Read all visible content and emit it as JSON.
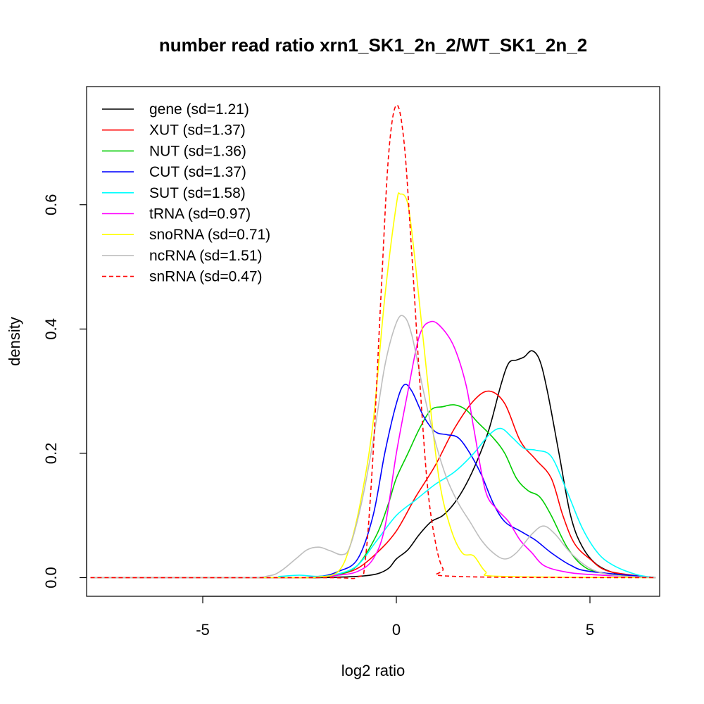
{
  "chart_data": {
    "type": "line",
    "title": "number read ratio xrn1_SK1_2n_2/WT_SK1_2n_2",
    "xlabel": "log2 ratio",
    "ylabel": "density",
    "xlim": [
      -8.0,
      6.8
    ],
    "ylim": [
      -0.03,
      0.79
    ],
    "x_ticks": [
      -5,
      0,
      5
    ],
    "x_tick_labels": [
      "-5",
      "0",
      "5"
    ],
    "y_ticks": [
      0.0,
      0.2,
      0.4,
      0.6
    ],
    "y_tick_labels": [
      "0.0",
      "0.2",
      "0.4",
      "0.6"
    ],
    "grid": false,
    "legend_position": "top-left",
    "series": [
      {
        "name": "gene (sd=1.21)",
        "color": "#000000",
        "dash": "solid",
        "points": [
          [
            -7.9,
            0
          ],
          [
            -3,
            0
          ],
          [
            -2,
            0
          ],
          [
            -1,
            0.002
          ],
          [
            -0.5,
            0.006
          ],
          [
            -0.2,
            0.015
          ],
          [
            0,
            0.03
          ],
          [
            0.3,
            0.045
          ],
          [
            0.6,
            0.07
          ],
          [
            0.9,
            0.09
          ],
          [
            1.2,
            0.1
          ],
          [
            1.5,
            0.12
          ],
          [
            1.8,
            0.15
          ],
          [
            2.1,
            0.19
          ],
          [
            2.4,
            0.24
          ],
          [
            2.7,
            0.31
          ],
          [
            2.9,
            0.345
          ],
          [
            3.1,
            0.35
          ],
          [
            3.3,
            0.355
          ],
          [
            3.5,
            0.365
          ],
          [
            3.7,
            0.35
          ],
          [
            3.9,
            0.3
          ],
          [
            4.2,
            0.2
          ],
          [
            4.5,
            0.1
          ],
          [
            4.8,
            0.05
          ],
          [
            5.2,
            0.02
          ],
          [
            5.8,
            0.005
          ],
          [
            6.7,
            0
          ]
        ]
      },
      {
        "name": "XUT (sd=1.37)",
        "color": "#ff0000",
        "dash": "solid",
        "points": [
          [
            -7.9,
            0
          ],
          [
            -3,
            0
          ],
          [
            -2,
            0.001
          ],
          [
            -1.5,
            0.005
          ],
          [
            -1,
            0.015
          ],
          [
            -0.5,
            0.04
          ],
          [
            0,
            0.075
          ],
          [
            0.5,
            0.13
          ],
          [
            1,
            0.18
          ],
          [
            1.5,
            0.24
          ],
          [
            2,
            0.285
          ],
          [
            2.4,
            0.3
          ],
          [
            2.8,
            0.28
          ],
          [
            3.2,
            0.22
          ],
          [
            3.6,
            0.19
          ],
          [
            4,
            0.16
          ],
          [
            4.3,
            0.1
          ],
          [
            4.6,
            0.055
          ],
          [
            5,
            0.03
          ],
          [
            5.5,
            0.01
          ],
          [
            6.7,
            0
          ]
        ]
      },
      {
        "name": "NUT (sd=1.36)",
        "color": "#00cd00",
        "dash": "solid",
        "points": [
          [
            -7.9,
            0
          ],
          [
            -3,
            0
          ],
          [
            -2,
            0.001
          ],
          [
            -1.5,
            0.005
          ],
          [
            -1,
            0.02
          ],
          [
            -0.5,
            0.07
          ],
          [
            -0.2,
            0.12
          ],
          [
            0,
            0.16
          ],
          [
            0.3,
            0.2
          ],
          [
            0.6,
            0.24
          ],
          [
            0.9,
            0.27
          ],
          [
            1.2,
            0.275
          ],
          [
            1.5,
            0.278
          ],
          [
            1.8,
            0.27
          ],
          [
            2.1,
            0.25
          ],
          [
            2.5,
            0.225
          ],
          [
            2.8,
            0.2
          ],
          [
            3.1,
            0.16
          ],
          [
            3.4,
            0.14
          ],
          [
            3.7,
            0.13
          ],
          [
            4,
            0.1
          ],
          [
            4.4,
            0.05
          ],
          [
            4.8,
            0.02
          ],
          [
            5.3,
            0.008
          ],
          [
            6.7,
            0
          ]
        ]
      },
      {
        "name": "CUT (sd=1.37)",
        "color": "#0000ff",
        "dash": "solid",
        "points": [
          [
            -7.9,
            0
          ],
          [
            -3,
            0
          ],
          [
            -2,
            0.002
          ],
          [
            -1.5,
            0.01
          ],
          [
            -1,
            0.03
          ],
          [
            -0.6,
            0.1
          ],
          [
            -0.3,
            0.2
          ],
          [
            0,
            0.28
          ],
          [
            0.2,
            0.31
          ],
          [
            0.4,
            0.3
          ],
          [
            0.7,
            0.26
          ],
          [
            1,
            0.235
          ],
          [
            1.3,
            0.23
          ],
          [
            1.6,
            0.225
          ],
          [
            1.9,
            0.2
          ],
          [
            2.2,
            0.165
          ],
          [
            2.5,
            0.12
          ],
          [
            2.8,
            0.09
          ],
          [
            3.2,
            0.075
          ],
          [
            3.6,
            0.06
          ],
          [
            4,
            0.04
          ],
          [
            4.5,
            0.02
          ],
          [
            5,
            0.01
          ],
          [
            6.7,
            0
          ]
        ]
      },
      {
        "name": "SUT (sd=1.58)",
        "color": "#00ffff",
        "dash": "solid",
        "points": [
          [
            -7.9,
            0
          ],
          [
            -3.5,
            0
          ],
          [
            -3,
            0.002
          ],
          [
            -2.5,
            0.004
          ],
          [
            -2,
            0.002
          ],
          [
            -1.5,
            0.006
          ],
          [
            -1,
            0.02
          ],
          [
            -0.5,
            0.06
          ],
          [
            0,
            0.1
          ],
          [
            0.5,
            0.125
          ],
          [
            1,
            0.15
          ],
          [
            1.5,
            0.17
          ],
          [
            2,
            0.2
          ],
          [
            2.4,
            0.23
          ],
          [
            2.7,
            0.24
          ],
          [
            3,
            0.225
          ],
          [
            3.3,
            0.208
          ],
          [
            3.6,
            0.205
          ],
          [
            4,
            0.195
          ],
          [
            4.4,
            0.14
          ],
          [
            4.8,
            0.08
          ],
          [
            5.2,
            0.04
          ],
          [
            5.6,
            0.02
          ],
          [
            6.2,
            0.005
          ],
          [
            6.7,
            0
          ]
        ]
      },
      {
        "name": "tRNA (sd=0.97)",
        "color": "#ff00ff",
        "dash": "solid",
        "points": [
          [
            -7.9,
            0
          ],
          [
            -3,
            0
          ],
          [
            -2,
            0.001
          ],
          [
            -1.5,
            0.004
          ],
          [
            -1,
            0.01
          ],
          [
            -0.6,
            0.03
          ],
          [
            -0.3,
            0.08
          ],
          [
            0,
            0.2
          ],
          [
            0.3,
            0.3
          ],
          [
            0.6,
            0.39
          ],
          [
            0.9,
            0.412
          ],
          [
            1.2,
            0.4
          ],
          [
            1.5,
            0.37
          ],
          [
            1.8,
            0.31
          ],
          [
            2,
            0.24
          ],
          [
            2.3,
            0.14
          ],
          [
            2.6,
            0.11
          ],
          [
            2.9,
            0.09
          ],
          [
            3.2,
            0.06
          ],
          [
            3.5,
            0.04
          ],
          [
            3.8,
            0.02
          ],
          [
            4.3,
            0.01
          ],
          [
            5,
            0.005
          ],
          [
            6.7,
            0
          ]
        ]
      },
      {
        "name": "snoRNA (sd=0.71)",
        "color": "#ffff00",
        "dash": "solid",
        "points": [
          [
            -7.9,
            0
          ],
          [
            -3,
            0
          ],
          [
            -2,
            0.001
          ],
          [
            -1.5,
            0.01
          ],
          [
            -1.2,
            0.05
          ],
          [
            -0.9,
            0.13
          ],
          [
            -0.6,
            0.25
          ],
          [
            -0.3,
            0.45
          ],
          [
            0,
            0.6
          ],
          [
            0.1,
            0.617
          ],
          [
            0.3,
            0.6
          ],
          [
            0.5,
            0.5
          ],
          [
            0.8,
            0.32
          ],
          [
            1.1,
            0.16
          ],
          [
            1.4,
            0.08
          ],
          [
            1.7,
            0.04
          ],
          [
            2,
            0.035
          ],
          [
            2.3,
            0.01
          ],
          [
            2.7,
            0.002
          ],
          [
            6.7,
            0
          ]
        ]
      },
      {
        "name": "ncRNA (sd=1.51)",
        "color": "#bebebe",
        "dash": "solid",
        "points": [
          [
            -7.9,
            0
          ],
          [
            -4,
            0
          ],
          [
            -3.3,
            0.003
          ],
          [
            -3,
            0.01
          ],
          [
            -2.6,
            0.03
          ],
          [
            -2.3,
            0.045
          ],
          [
            -2,
            0.049
          ],
          [
            -1.7,
            0.043
          ],
          [
            -1.4,
            0.037
          ],
          [
            -1.2,
            0.05
          ],
          [
            -0.9,
            0.12
          ],
          [
            -0.6,
            0.22
          ],
          [
            -0.3,
            0.34
          ],
          [
            0,
            0.41
          ],
          [
            0.2,
            0.42
          ],
          [
            0.4,
            0.39
          ],
          [
            0.7,
            0.3
          ],
          [
            1,
            0.22
          ],
          [
            1.3,
            0.16
          ],
          [
            1.6,
            0.12
          ],
          [
            1.9,
            0.09
          ],
          [
            2.2,
            0.06
          ],
          [
            2.5,
            0.04
          ],
          [
            2.8,
            0.03
          ],
          [
            3.1,
            0.04
          ],
          [
            3.5,
            0.07
          ],
          [
            3.8,
            0.083
          ],
          [
            4.1,
            0.07
          ],
          [
            4.5,
            0.04
          ],
          [
            5,
            0.015
          ],
          [
            5.6,
            0.004
          ],
          [
            6.7,
            0
          ]
        ]
      },
      {
        "name": "snRNA (sd=0.47)",
        "color": "#ff0000",
        "dash": "dashed",
        "points": [
          [
            -7.9,
            0
          ],
          [
            -2,
            0
          ],
          [
            -1,
            0.001
          ],
          [
            -0.8,
            0.03
          ],
          [
            -0.6,
            0.2
          ],
          [
            -0.4,
            0.45
          ],
          [
            -0.2,
            0.68
          ],
          [
            0,
            0.76
          ],
          [
            0.2,
            0.7
          ],
          [
            0.4,
            0.52
          ],
          [
            0.6,
            0.32
          ],
          [
            0.8,
            0.15
          ],
          [
            1,
            0.06
          ],
          [
            1.2,
            0.015
          ],
          [
            1.5,
            0.002
          ],
          [
            6.7,
            0
          ]
        ]
      }
    ]
  }
}
